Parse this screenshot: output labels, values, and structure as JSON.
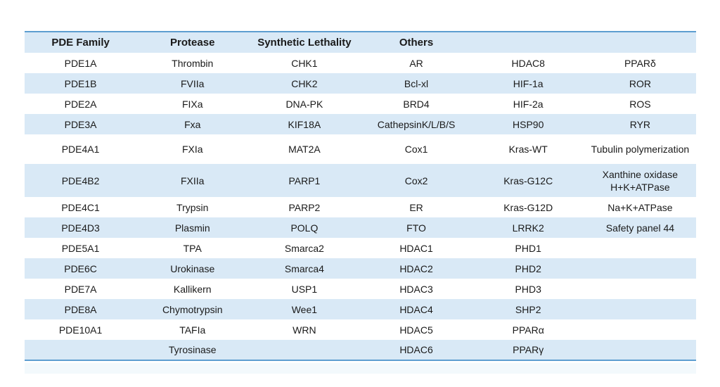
{
  "chart_data": {
    "type": "table",
    "title": "",
    "columns": [
      "PDE Family",
      "Protease",
      "Synthetic Lethality",
      "Others",
      "",
      ""
    ],
    "rows": [
      [
        "PDE1A",
        "Thrombin",
        "CHK1",
        "AR",
        "HDAC8",
        "PPARδ"
      ],
      [
        "PDE1B",
        "FVIIa",
        "CHK2",
        "Bcl-xl",
        "HIF-1a",
        "ROR"
      ],
      [
        "PDE2A",
        "FIXa",
        "DNA-PK",
        "BRD4",
        "HIF-2a",
        "ROS"
      ],
      [
        "PDE3A",
        "Fxa",
        "KIF18A",
        "CathepsinK/L/B/S",
        "HSP90",
        "RYR"
      ],
      [
        "PDE4A1",
        "FXIa",
        "MAT2A",
        "Cox1",
        "Kras-WT",
        "Tubulin polymerization"
      ],
      [
        "PDE4B2",
        "FXIIa",
        "PARP1",
        "Cox2",
        "Kras-G12C",
        "Xanthine oxidase\nH+K+ATPase"
      ],
      [
        "PDE4C1",
        "Trypsin",
        "PARP2",
        "ER",
        "Kras-G12D",
        "Na+K+ATPase"
      ],
      [
        "PDE4D3",
        "Plasmin",
        "POLQ",
        "FTO",
        "LRRK2",
        "Safety panel 44"
      ],
      [
        "PDE5A1",
        "TPA",
        "Smarca2",
        "HDAC1",
        "PHD1",
        ""
      ],
      [
        "PDE6C",
        "Urokinase",
        "Smarca4",
        "HDAC2",
        "PHD2",
        ""
      ],
      [
        "PDE7A",
        "Kallikern",
        "USP1",
        "HDAC3",
        "PHD3",
        ""
      ],
      [
        "PDE8A",
        "Chymotrypsin",
        "Wee1",
        "HDAC4",
        "SHP2",
        ""
      ],
      [
        "PDE10A1",
        "TAFIa",
        "WRN",
        "HDAC5",
        "PPARα",
        ""
      ],
      [
        "",
        "Tyrosinase",
        "",
        "HDAC6",
        "PPARγ",
        ""
      ]
    ],
    "layout_hints": {
      "stripe_color": "#d9e9f6",
      "border_color": "#5d9ed0",
      "text_color": "#1a1a1a",
      "banded_rows": true,
      "header_band_blue": true
    }
  }
}
